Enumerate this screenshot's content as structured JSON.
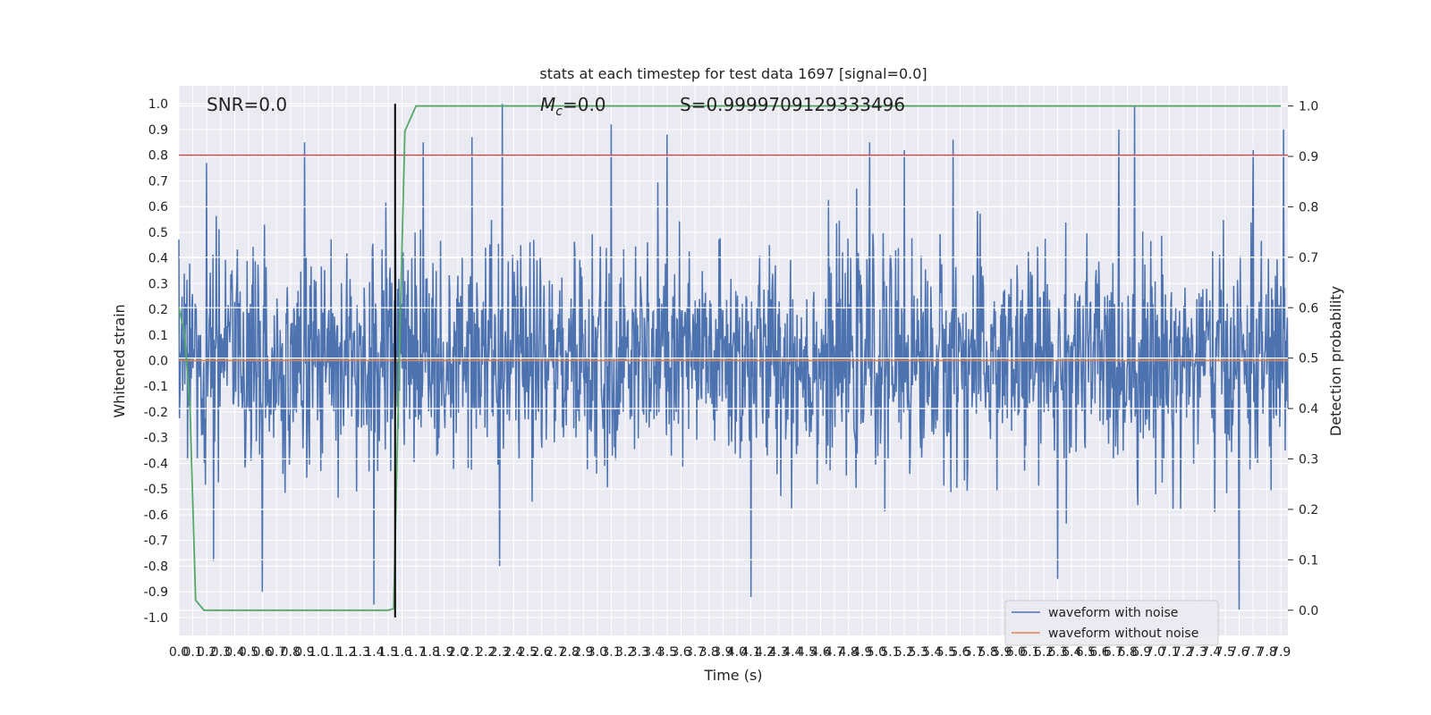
{
  "chart_data": {
    "type": "line",
    "title": "stats at each timestep for test data 1697 [signal=0.0]",
    "xlabel": "Time (s)",
    "ylabel": "Whitened strain",
    "ylabel_right": "Detection probability",
    "annotations": {
      "snr": "SNR=0.0",
      "mc_symbol": "M",
      "mc_sub": "c",
      "mc_value": "=0.0",
      "s": "S=0.9999709129333496"
    },
    "xlim": [
      0.0,
      7.95
    ],
    "ylim": [
      -1.07,
      1.07
    ],
    "ylim_right": [
      -0.05,
      1.04
    ],
    "x_ticks": [
      0.0,
      0.1,
      0.2,
      0.3,
      0.4,
      0.5,
      0.6,
      0.7,
      0.8,
      0.9,
      1.0,
      1.1,
      1.2,
      1.3,
      1.4,
      1.5,
      1.6,
      1.7,
      1.8,
      1.9,
      2.0,
      2.1,
      2.2,
      2.3,
      2.4,
      2.5,
      2.6,
      2.7,
      2.8,
      2.9,
      3.0,
      3.1,
      3.2,
      3.3,
      3.4,
      3.5,
      3.6,
      3.7,
      3.8,
      3.9,
      4.0,
      4.1,
      4.2,
      4.3,
      4.4,
      4.5,
      4.6,
      4.7,
      4.8,
      4.9,
      5.0,
      5.1,
      5.2,
      5.3,
      5.4,
      5.5,
      5.6,
      5.7,
      5.8,
      5.9,
      6.0,
      6.1,
      6.2,
      6.3,
      6.4,
      6.5,
      6.6,
      6.7,
      6.8,
      6.9,
      7.0,
      7.1,
      7.2,
      7.3,
      7.4,
      7.5,
      7.6,
      7.7,
      7.8,
      7.9
    ],
    "y_ticks": [
      1.0,
      0.9,
      0.8,
      0.7,
      0.6,
      0.5,
      0.4,
      0.3,
      0.2,
      0.1,
      0.0,
      -0.1,
      -0.2,
      -0.3,
      -0.4,
      -0.5,
      -0.6,
      -0.7,
      -0.8,
      -0.9,
      -1.0
    ],
    "y_ticks_right": [
      1.0,
      0.9,
      0.8,
      0.7,
      0.6,
      0.5,
      0.4,
      0.3,
      0.2,
      0.1,
      0.0
    ],
    "grid": true,
    "legend_position": "bottom-right",
    "series": [
      {
        "name": "waveform with noise",
        "color": "#4c72b0",
        "axis": "left",
        "noise": {
          "samples": 2048,
          "std": 0.21,
          "peaks": [
            [
              0.2,
              0.77
            ],
            [
              0.25,
              -0.78
            ],
            [
              0.6,
              -0.9
            ],
            [
              0.9,
              0.85
            ],
            [
              1.4,
              -0.95
            ],
            [
              1.75,
              0.85
            ],
            [
              2.1,
              0.87
            ],
            [
              2.3,
              -0.8
            ],
            [
              2.32,
              1.0
            ],
            [
              3.1,
              0.92
            ],
            [
              3.5,
              0.88
            ],
            [
              4.1,
              -0.92
            ],
            [
              4.95,
              0.85
            ],
            [
              5.2,
              0.82
            ],
            [
              5.55,
              0.86
            ],
            [
              6.3,
              -0.85
            ],
            [
              6.85,
              0.99
            ],
            [
              7.6,
              -0.97
            ],
            [
              7.7,
              0.82
            ],
            [
              7.92,
              0.9
            ]
          ]
        }
      },
      {
        "name": "waveform without noise",
        "color": "#dd8452",
        "axis": "left",
        "x": [
          0.0,
          7.95
        ],
        "y": [
          0.0,
          0.0
        ]
      },
      {
        "name": "",
        "color": "#55a868",
        "axis": "right",
        "x": [
          0.0,
          0.04,
          0.08,
          0.12,
          0.18,
          0.5,
          1.0,
          1.4,
          1.5,
          1.54,
          1.58,
          1.62,
          1.7,
          7.9
        ],
        "y": [
          0.6,
          0.55,
          0.4,
          0.02,
          0.0,
          0.0,
          0.0,
          0.0,
          0.0,
          0.003,
          0.5,
          0.95,
          1.0,
          1.0
        ]
      }
    ],
    "threshold": {
      "value": 0.8,
      "color": "#c44e52",
      "axis": "left"
    },
    "vertical_marker": {
      "x": 1.55,
      "color": "#000000",
      "y_range": [
        -1.0,
        1.0
      ]
    }
  }
}
